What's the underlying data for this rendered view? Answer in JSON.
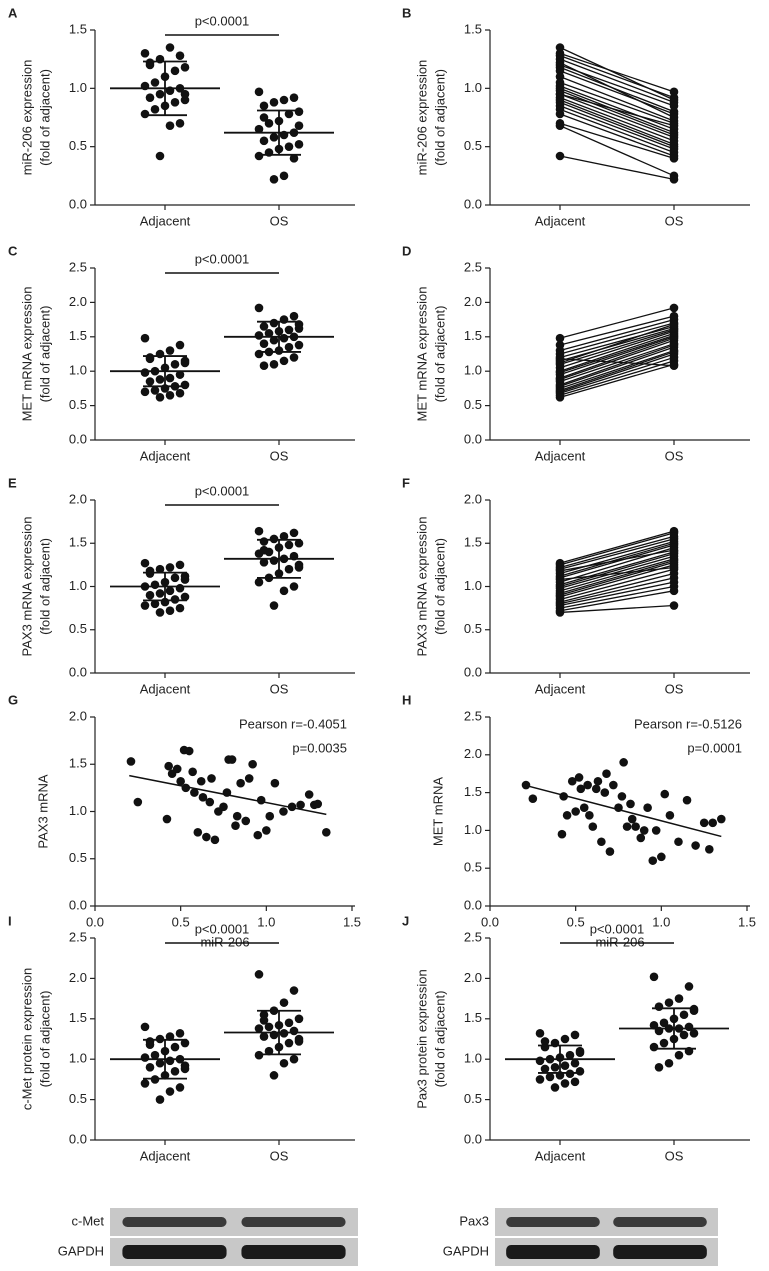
{
  "chart_data": [
    {
      "type": "dot",
      "panel": "A",
      "ylabel": [
        "miR-206 expression",
        "(fold of adjacent)"
      ],
      "categories": [
        "Adjacent",
        "OS"
      ],
      "groups": [
        {
          "values": [
            1.3,
            1.28,
            1.35,
            1.25,
            1.2,
            1.18,
            1.15,
            1.1,
            1.05,
            1.02,
            1.0,
            0.98,
            0.95,
            0.92,
            0.9,
            0.88,
            0.85,
            0.82,
            0.78,
            0.7,
            0.68,
            0.42,
            1.22,
            0.95
          ],
          "mean": 1.0,
          "sd": 0.23
        },
        {
          "values": [
            0.97,
            0.92,
            0.9,
            0.88,
            0.85,
            0.8,
            0.78,
            0.72,
            0.7,
            0.65,
            0.62,
            0.6,
            0.58,
            0.55,
            0.52,
            0.5,
            0.48,
            0.45,
            0.42,
            0.4,
            0.25,
            0.22,
            0.75,
            0.68
          ],
          "mean": 0.62,
          "sd": 0.19
        }
      ],
      "annotation": "p<0.0001",
      "ylim": [
        0,
        1.5
      ],
      "yticks": [
        {
          "value": 0,
          "label": "0.0"
        },
        0.5,
        {
          "value": 1,
          "label": "1.0"
        },
        1.5
      ]
    },
    {
      "type": "paired",
      "panel": "B",
      "ylabel": [
        "miR-206 expression",
        "(fold of adjacent)"
      ],
      "categories": [
        "Adjacent",
        "OS"
      ],
      "groups": [
        {
          "values": [
            1.3,
            1.28,
            1.35,
            1.25,
            1.2,
            1.18,
            1.15,
            1.1,
            1.05,
            1.02,
            1.0,
            0.98,
            0.95,
            0.92,
            0.9,
            0.88,
            0.85,
            0.82,
            0.78,
            0.7,
            0.68,
            0.42,
            1.22,
            0.95
          ]
        },
        {
          "values": [
            0.97,
            0.92,
            0.9,
            0.88,
            0.85,
            0.8,
            0.78,
            0.72,
            0.7,
            0.65,
            0.62,
            0.6,
            0.58,
            0.55,
            0.52,
            0.5,
            0.48,
            0.45,
            0.42,
            0.4,
            0.25,
            0.22,
            0.75,
            0.68
          ]
        }
      ],
      "ylim": [
        0,
        1.5
      ],
      "yticks": [
        {
          "value": 0,
          "label": "0.0"
        },
        0.5,
        {
          "value": 1,
          "label": "1.0"
        },
        1.5
      ]
    },
    {
      "type": "dot",
      "panel": "C",
      "ylabel": [
        "MET mRNA expression",
        "(fold of adjacent)"
      ],
      "categories": [
        "Adjacent",
        "OS"
      ],
      "groups": [
        {
          "values": [
            1.48,
            1.38,
            1.3,
            1.25,
            1.2,
            1.15,
            1.1,
            1.05,
            1.0,
            0.98,
            0.95,
            0.9,
            0.88,
            0.85,
            0.8,
            0.78,
            0.75,
            0.72,
            0.7,
            0.68,
            0.65,
            0.62,
            1.18,
            1.12
          ],
          "mean": 1.0,
          "sd": 0.22
        },
        {
          "values": [
            1.92,
            1.8,
            1.75,
            1.7,
            1.65,
            1.62,
            1.6,
            1.58,
            1.55,
            1.52,
            1.5,
            1.48,
            1.45,
            1.4,
            1.38,
            1.35,
            1.3,
            1.28,
            1.25,
            1.2,
            1.15,
            1.1,
            1.08,
            1.68
          ],
          "mean": 1.5,
          "sd": 0.22
        }
      ],
      "annotation": "p<0.0001",
      "ylim": [
        0,
        2.5
      ],
      "yticks": [
        {
          "value": 0,
          "label": "0.0"
        },
        0.5,
        {
          "value": 1,
          "label": "1.0"
        },
        1.5,
        {
          "value": 2,
          "label": "2.0"
        },
        2.5
      ]
    },
    {
      "type": "paired",
      "panel": "D",
      "ylabel": [
        "MET mRNA expression",
        "(fold of adjacent)"
      ],
      "categories": [
        "Adjacent",
        "OS"
      ],
      "groups": [
        {
          "values": [
            1.48,
            1.38,
            1.3,
            1.25,
            1.2,
            1.15,
            1.1,
            1.05,
            1.0,
            0.98,
            0.95,
            0.9,
            0.88,
            0.85,
            0.8,
            0.78,
            0.75,
            0.72,
            0.7,
            0.68,
            0.65,
            0.62,
            1.18,
            1.12
          ]
        },
        {
          "values": [
            1.92,
            1.8,
            1.75,
            1.7,
            1.65,
            1.62,
            1.6,
            1.58,
            1.55,
            1.52,
            1.5,
            1.48,
            1.45,
            1.4,
            1.38,
            1.35,
            1.3,
            1.28,
            1.25,
            1.2,
            1.15,
            1.1,
            1.08,
            1.68
          ]
        }
      ],
      "ylim": [
        0,
        2.5
      ],
      "yticks": [
        {
          "value": 0,
          "label": "0.0"
        },
        0.5,
        {
          "value": 1,
          "label": "1.0"
        },
        1.5,
        {
          "value": 2,
          "label": "2.0"
        },
        2.5
      ]
    },
    {
      "type": "dot",
      "panel": "E",
      "ylabel": [
        "PAX3 mRNA expression",
        "(fold of adjacent)"
      ],
      "categories": [
        "Adjacent",
        "OS"
      ],
      "groups": [
        {
          "values": [
            1.27,
            1.25,
            1.22,
            1.2,
            1.15,
            1.12,
            1.1,
            1.05,
            1.02,
            1.0,
            0.98,
            0.95,
            0.92,
            0.9,
            0.88,
            0.85,
            0.82,
            0.8,
            0.78,
            0.75,
            0.72,
            0.7,
            1.18,
            1.08
          ],
          "mean": 1.0,
          "sd": 0.16
        },
        {
          "values": [
            1.64,
            1.62,
            1.58,
            1.55,
            1.52,
            1.5,
            1.48,
            1.45,
            1.4,
            1.38,
            1.35,
            1.32,
            1.3,
            1.28,
            1.25,
            1.2,
            1.15,
            1.1,
            1.05,
            1.0,
            0.95,
            0.78,
            1.42,
            1.22
          ],
          "mean": 1.32,
          "sd": 0.22
        }
      ],
      "annotation": "p<0.0001",
      "ylim": [
        0,
        2.0
      ],
      "yticks": [
        {
          "value": 0,
          "label": "0.0"
        },
        0.5,
        {
          "value": 1,
          "label": "1.0"
        },
        1.5,
        {
          "value": 2,
          "label": "2.0"
        }
      ]
    },
    {
      "type": "paired",
      "panel": "F",
      "ylabel": [
        "PAX3 mRNA expression",
        "(fold of adjacent)"
      ],
      "categories": [
        "Adjacent",
        "OS"
      ],
      "groups": [
        {
          "values": [
            1.27,
            1.25,
            1.22,
            1.2,
            1.15,
            1.12,
            1.1,
            1.05,
            1.02,
            1.0,
            0.98,
            0.95,
            0.92,
            0.9,
            0.88,
            0.85,
            0.82,
            0.8,
            0.78,
            0.75,
            0.72,
            0.7,
            1.18,
            1.08
          ]
        },
        {
          "values": [
            1.64,
            1.62,
            1.58,
            1.55,
            1.52,
            1.5,
            1.48,
            1.45,
            1.4,
            1.38,
            1.35,
            1.32,
            1.3,
            1.28,
            1.25,
            1.2,
            1.15,
            1.1,
            1.05,
            1.0,
            0.95,
            0.78,
            1.42,
            1.22
          ]
        }
      ],
      "ylim": [
        0,
        2.0
      ],
      "yticks": [
        {
          "value": 0,
          "label": "0.0"
        },
        0.5,
        {
          "value": 1,
          "label": "1.0"
        },
        1.5,
        {
          "value": 2,
          "label": "2.0"
        }
      ]
    },
    {
      "type": "scatter",
      "panel": "G",
      "ylabel": [
        "PAX3 mRNA"
      ],
      "xlabel": "miR-206",
      "x": [
        0.21,
        0.25,
        0.42,
        0.43,
        0.45,
        0.48,
        0.5,
        0.52,
        0.53,
        0.55,
        0.57,
        0.58,
        0.6,
        0.62,
        0.63,
        0.65,
        0.67,
        0.68,
        0.7,
        0.72,
        0.75,
        0.77,
        0.78,
        0.8,
        0.82,
        0.83,
        0.85,
        0.88,
        0.9,
        0.92,
        0.95,
        0.97,
        1.0,
        1.02,
        1.05,
        1.1,
        1.15,
        1.2,
        1.25,
        1.28,
        1.3,
        1.35
      ],
      "y": [
        1.53,
        1.1,
        0.92,
        1.48,
        1.4,
        1.45,
        1.32,
        1.65,
        1.25,
        1.64,
        1.42,
        1.2,
        0.78,
        1.32,
        1.15,
        0.73,
        1.1,
        1.35,
        0.7,
        1.0,
        1.05,
        1.2,
        1.55,
        1.55,
        0.85,
        0.95,
        1.3,
        0.9,
        1.35,
        1.5,
        0.75,
        1.12,
        0.8,
        0.95,
        1.3,
        1.0,
        1.05,
        1.07,
        1.18,
        1.07,
        1.08,
        0.78
      ],
      "fit": {
        "x": [
          0.2,
          1.35
        ],
        "y": [
          1.38,
          0.97
        ]
      },
      "annotations": [
        "Pearson r=-0.4051",
        "p=0.0035"
      ],
      "xlim": [
        0,
        1.5
      ],
      "xticks": [
        {
          "value": 0,
          "label": "0.0"
        },
        0.5,
        {
          "value": 1,
          "label": "1.0"
        },
        1.5
      ],
      "ylim": [
        0,
        2.0
      ],
      "yticks": [
        {
          "value": 0,
          "label": "0.0"
        },
        0.5,
        {
          "value": 1,
          "label": "1.0"
        },
        1.5,
        {
          "value": 2,
          "label": "2.0"
        }
      ]
    },
    {
      "type": "scatter",
      "panel": "H",
      "ylabel": [
        "MET mRNA"
      ],
      "xlabel": "miR-206",
      "x": [
        0.21,
        0.25,
        0.42,
        0.43,
        0.45,
        0.48,
        0.5,
        0.52,
        0.53,
        0.55,
        0.57,
        0.58,
        0.6,
        0.62,
        0.63,
        0.65,
        0.67,
        0.68,
        0.7,
        0.72,
        0.75,
        0.77,
        0.78,
        0.8,
        0.82,
        0.83,
        0.85,
        0.88,
        0.9,
        0.92,
        0.95,
        0.97,
        1.0,
        1.02,
        1.05,
        1.1,
        1.15,
        1.2,
        1.25,
        1.28,
        1.3,
        1.35
      ],
      "y": [
        1.6,
        1.42,
        0.95,
        1.45,
        1.2,
        1.65,
        1.25,
        1.7,
        1.55,
        1.3,
        1.6,
        1.2,
        1.05,
        1.55,
        1.65,
        0.85,
        1.5,
        1.75,
        0.72,
        1.6,
        1.3,
        1.45,
        1.9,
        1.05,
        1.35,
        1.15,
        1.05,
        0.9,
        1.0,
        1.3,
        0.6,
        1.0,
        0.65,
        1.48,
        1.2,
        0.85,
        1.4,
        0.8,
        1.1,
        0.75,
        1.1,
        1.15
      ],
      "fit": {
        "x": [
          0.2,
          1.35
        ],
        "y": [
          1.6,
          0.92
        ]
      },
      "annotations": [
        "Pearson r=-0.5126",
        "p=0.0001"
      ],
      "xlim": [
        0,
        1.5
      ],
      "xticks": [
        {
          "value": 0,
          "label": "0.0"
        },
        0.5,
        {
          "value": 1,
          "label": "1.0"
        },
        1.5
      ],
      "ylim": [
        0,
        2.5
      ],
      "yticks": [
        {
          "value": 0,
          "label": "0.0"
        },
        0.5,
        {
          "value": 1,
          "label": "1.0"
        },
        1.5,
        {
          "value": 2,
          "label": "2.0"
        },
        2.5
      ]
    },
    {
      "type": "dot",
      "panel": "I",
      "ylabel": [
        "c-Met protein expression",
        "(fold of adjacent)"
      ],
      "categories": [
        "Adjacent",
        "OS"
      ],
      "groups": [
        {
          "values": [
            1.4,
            1.32,
            1.28,
            1.25,
            1.22,
            1.2,
            1.15,
            1.1,
            1.05,
            1.02,
            1.0,
            0.98,
            0.95,
            0.9,
            0.88,
            0.85,
            0.8,
            0.75,
            0.7,
            0.65,
            0.6,
            0.5,
            1.18,
            0.92
          ],
          "mean": 1.0,
          "sd": 0.24
        },
        {
          "values": [
            2.05,
            1.85,
            1.7,
            1.6,
            1.55,
            1.5,
            1.45,
            1.42,
            1.4,
            1.38,
            1.35,
            1.32,
            1.3,
            1.28,
            1.25,
            1.2,
            1.15,
            1.1,
            1.05,
            1.0,
            0.95,
            0.8,
            1.48,
            1.22
          ],
          "mean": 1.33,
          "sd": 0.27
        }
      ],
      "annotation": "p<0.0001",
      "blot_labels": [
        "c-Met",
        "GAPDH"
      ],
      "ylim": [
        0,
        2.5
      ],
      "yticks": [
        {
          "value": 0,
          "label": "0.0"
        },
        0.5,
        {
          "value": 1,
          "label": "1.0"
        },
        1.5,
        {
          "value": 2,
          "label": "2.0"
        },
        2.5
      ]
    },
    {
      "type": "dot",
      "panel": "J",
      "ylabel": [
        "Pax3 protein expression",
        "(fold of adjacent)"
      ],
      "categories": [
        "Adjacent",
        "OS"
      ],
      "groups": [
        {
          "values": [
            1.32,
            1.3,
            1.25,
            1.2,
            1.15,
            1.1,
            1.05,
            1.02,
            1.0,
            0.98,
            0.95,
            0.92,
            0.9,
            0.88,
            0.85,
            0.82,
            0.8,
            0.78,
            0.75,
            0.72,
            0.7,
            0.65,
            1.22,
            1.08
          ],
          "mean": 1.0,
          "sd": 0.17
        },
        {
          "values": [
            2.02,
            1.9,
            1.75,
            1.7,
            1.65,
            1.62,
            1.55,
            1.5,
            1.45,
            1.42,
            1.4,
            1.38,
            1.38,
            1.35,
            1.32,
            1.3,
            1.25,
            1.2,
            1.15,
            1.1,
            1.05,
            0.95,
            0.9,
            1.6
          ],
          "mean": 1.38,
          "sd": 0.25
        }
      ],
      "annotation": "p<0.0001",
      "blot_labels": [
        "Pax3",
        "GAPDH"
      ],
      "ylim": [
        0,
        2.5
      ],
      "yticks": [
        {
          "value": 0,
          "label": "0.0"
        },
        0.5,
        {
          "value": 1,
          "label": "1.0"
        },
        1.5,
        {
          "value": 2,
          "label": "2.0"
        },
        2.5
      ]
    }
  ]
}
